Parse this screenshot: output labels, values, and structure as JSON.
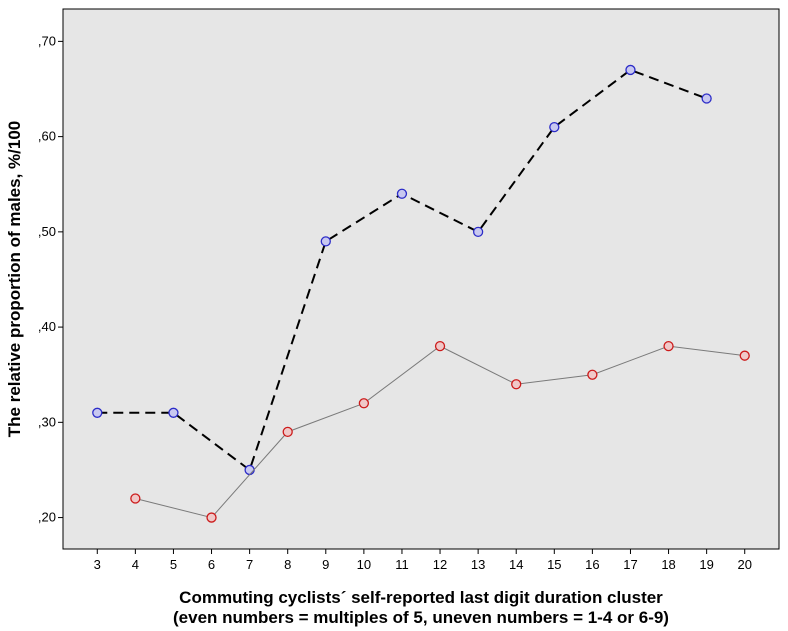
{
  "chart_data": {
    "type": "line",
    "xlabel": "Commuting cyclists´ self-reported last digit duration cluster",
    "xlabel_line2": "(even numbers = multiples of 5, uneven numbers = 1-4 or 6-9)",
    "ylabel": "The relative proportion of males, %/100",
    "x_ticks": [
      "3",
      "4",
      "5",
      "6",
      "7",
      "8",
      "9",
      "10",
      "11",
      "12",
      "13",
      "14",
      "15",
      "16",
      "17",
      "18",
      "19",
      "20"
    ],
    "y_ticks": [
      ",20",
      ",30",
      ",40",
      ",50",
      ",60",
      ",70"
    ],
    "y_tick_values": [
      0.2,
      0.3,
      0.4,
      0.5,
      0.6,
      0.7
    ],
    "xlim": [
      2.1,
      20.9
    ],
    "ylim": [
      0.167,
      0.734
    ],
    "grid": false,
    "legend": "none",
    "background": "#e6e6e6",
    "series": [
      {
        "x": [
          3,
          5,
          7,
          9,
          11,
          13,
          15,
          17,
          19
        ],
        "y": [
          0.31,
          0.31,
          0.25,
          0.49,
          0.54,
          0.5,
          0.61,
          0.67,
          0.64
        ],
        "line_style": "dashed",
        "line_color": "#000000",
        "marker_color": "#2c2cc8",
        "marker_fill": "#c8c8f0"
      },
      {
        "x": [
          4,
          6,
          8,
          10,
          12,
          14,
          16,
          18,
          20
        ],
        "y": [
          0.22,
          0.2,
          0.29,
          0.32,
          0.38,
          0.34,
          0.35,
          0.38,
          0.37
        ],
        "line_style": "solid",
        "line_color": "#7a7a7a",
        "marker_color": "#cc1a1a",
        "marker_fill": "#f0c8c8"
      }
    ]
  }
}
